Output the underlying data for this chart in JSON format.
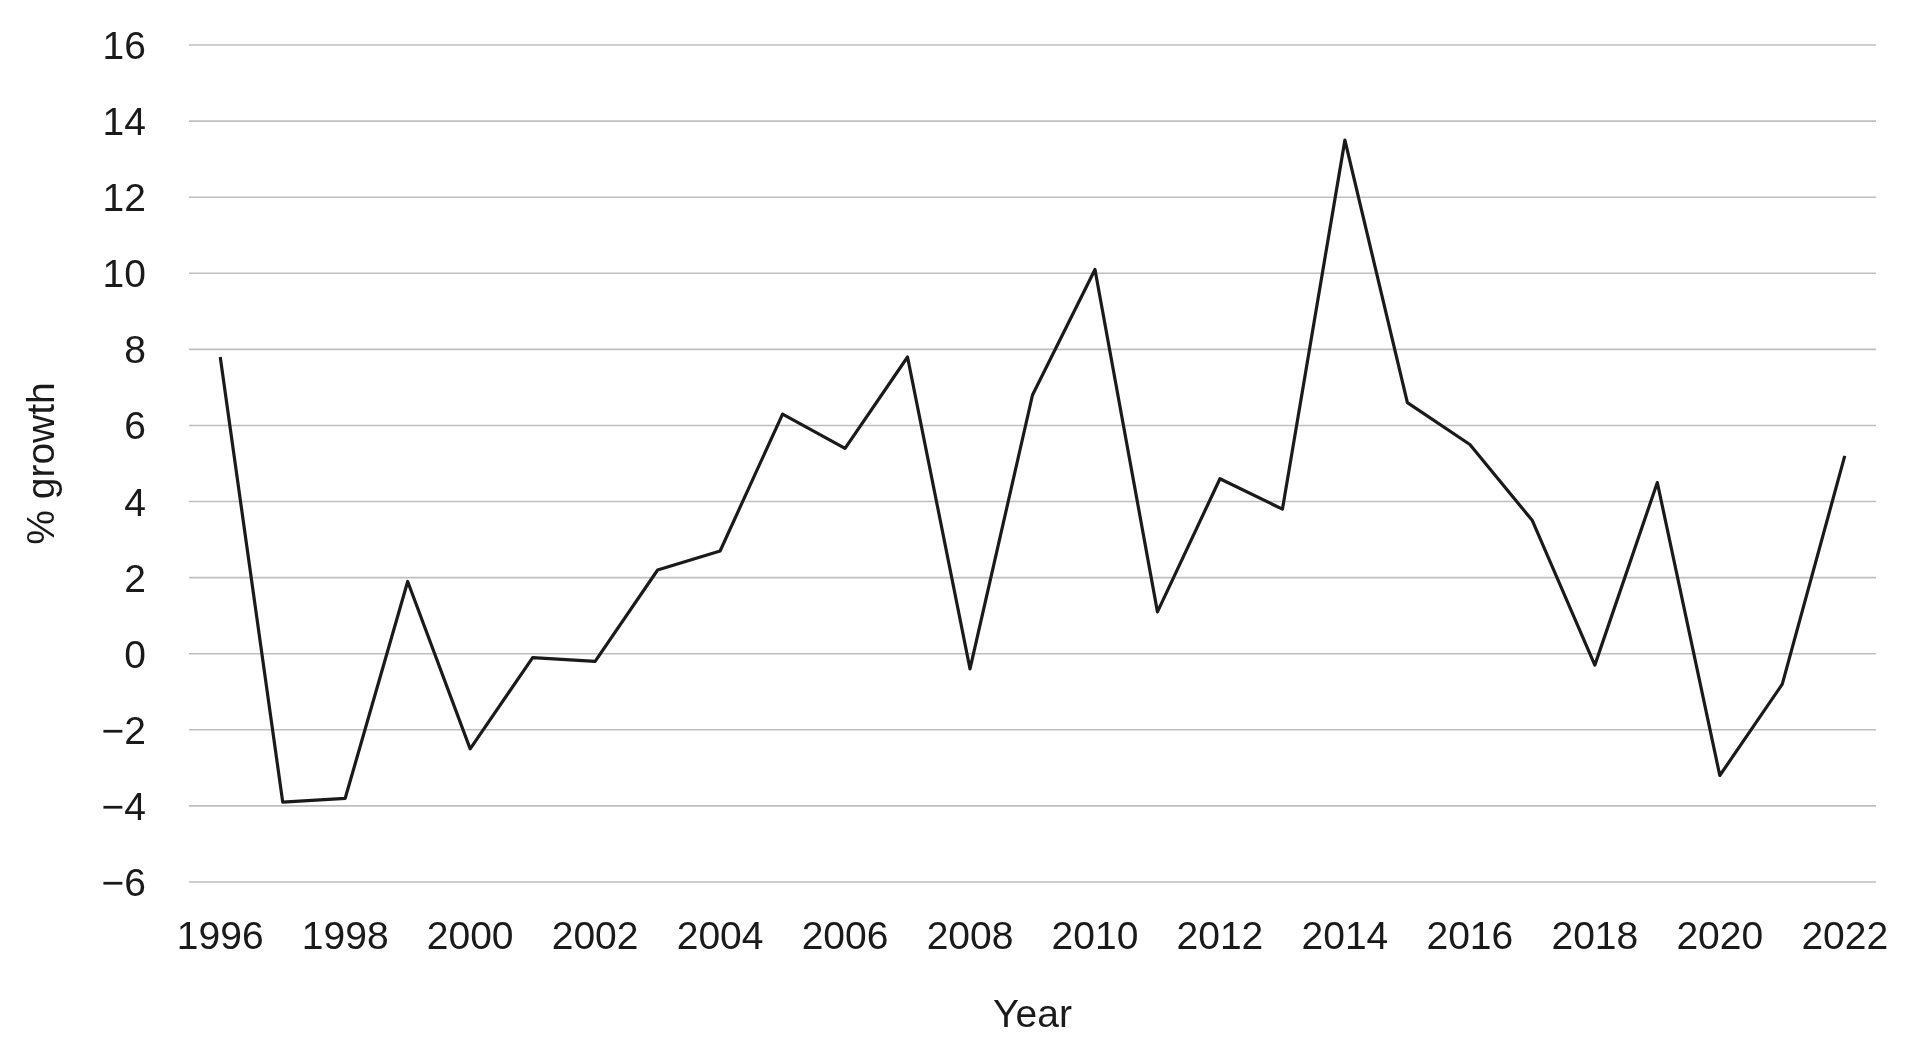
{
  "chart_data": {
    "type": "line",
    "xlabel": "Year",
    "ylabel": "% growth",
    "x": [
      1996,
      1997,
      1998,
      1999,
      2000,
      2001,
      2002,
      2003,
      2004,
      2005,
      2006,
      2007,
      2008,
      2009,
      2010,
      2011,
      2012,
      2013,
      2014,
      2015,
      2016,
      2017,
      2018,
      2019,
      2020,
      2021,
      2022
    ],
    "series": [
      {
        "color": "#1a1a1a",
        "values": [
          7.8,
          -3.9,
          -3.8,
          1.9,
          -2.5,
          -0.1,
          -0.2,
          2.2,
          2.7,
          6.3,
          5.4,
          7.8,
          -0.4,
          6.8,
          10.1,
          1.1,
          4.6,
          3.8,
          13.5,
          6.6,
          5.5,
          3.5,
          -0.3,
          4.5,
          -3.2,
          -0.8,
          5.2
        ]
      }
    ],
    "xlim": [
      1995.5,
      2022.5
    ],
    "xticks": [
      1996,
      1998,
      2000,
      2002,
      2004,
      2006,
      2008,
      2010,
      2012,
      2014,
      2016,
      2018,
      2020,
      2022
    ],
    "ylim": [
      -6,
      16
    ],
    "yticks": [
      {
        "value": -6,
        "label": "−6"
      },
      {
        "value": -4,
        "label": "−4"
      },
      {
        "value": -2,
        "label": "−2"
      },
      0,
      2,
      4,
      6,
      8,
      10,
      12,
      14,
      16
    ],
    "grid": "y",
    "marker": "none",
    "line_style": "solid"
  }
}
